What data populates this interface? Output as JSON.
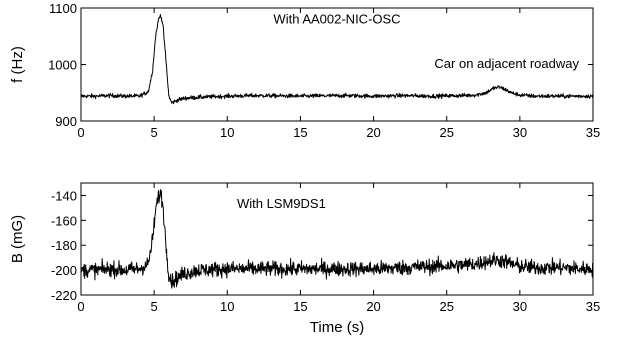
{
  "chart_data": [
    {
      "type": "line",
      "ylabel": "f (Hz)",
      "xlabel": "",
      "xlim": [
        0,
        35
      ],
      "ylim": [
        900,
        1100
      ],
      "xticks": [
        0,
        5,
        10,
        15,
        20,
        25,
        30,
        35
      ],
      "yticks": [
        900,
        1000,
        1100
      ],
      "annotations": [
        {
          "text": "With AA002-NIC-OSC",
          "x": 17.5,
          "y": 1073
        },
        {
          "text": "Car on adjacent roadway",
          "x": 29.1,
          "y": 994
        }
      ],
      "series": [
        {
          "x": [
            0,
            1,
            2,
            3,
            4,
            4.6,
            4.9,
            5.1,
            5.3,
            5.45,
            5.6,
            5.8,
            6.0,
            6.2,
            6.5,
            7,
            8,
            10,
            12,
            15,
            18,
            20,
            22,
            24,
            26,
            27,
            27.7,
            28.2,
            28.6,
            29.0,
            29.4,
            30,
            31,
            32,
            33,
            34,
            35
          ],
          "y": [
            944,
            944,
            945,
            944,
            944,
            952,
            990,
            1050,
            1080,
            1088,
            1070,
            1010,
            945,
            932,
            936,
            940,
            942,
            944,
            945,
            944,
            945,
            944,
            945,
            944,
            945,
            946,
            950,
            958,
            960,
            956,
            950,
            946,
            944,
            944,
            944,
            944,
            944
          ],
          "noise": 3
        }
      ]
    },
    {
      "type": "line",
      "ylabel": "B (mG)",
      "xlabel": "Time (s)",
      "xlim": [
        0,
        35
      ],
      "ylim": [
        -220,
        -130
      ],
      "xticks": [
        0,
        5,
        10,
        15,
        20,
        25,
        30,
        35
      ],
      "yticks": [
        -220,
        -200,
        -180,
        -160,
        -140
      ],
      "annotations": [
        {
          "text": "With LSM9DS1",
          "x": 13.7,
          "y": -150
        }
      ],
      "series": [
        {
          "x": [
            0,
            1,
            2,
            3,
            4,
            4.6,
            4.9,
            5.1,
            5.3,
            5.45,
            5.6,
            5.8,
            6.0,
            6.2,
            6.5,
            7,
            8,
            10,
            12,
            15,
            18,
            20,
            22,
            24,
            26,
            27,
            27.7,
            28.2,
            28.6,
            29.0,
            29.4,
            30,
            31,
            32,
            33,
            34,
            35
          ],
          "y": [
            -200,
            -200,
            -199,
            -200,
            -199,
            -195,
            -175,
            -152,
            -141,
            -138,
            -148,
            -178,
            -203,
            -209,
            -207,
            -203,
            -200,
            -199,
            -199,
            -199,
            -199,
            -199,
            -198,
            -197,
            -196,
            -195,
            -193,
            -192,
            -192,
            -193,
            -195,
            -197,
            -198,
            -198,
            -198,
            -199,
            -199
          ],
          "noise": 5
        }
      ]
    }
  ]
}
